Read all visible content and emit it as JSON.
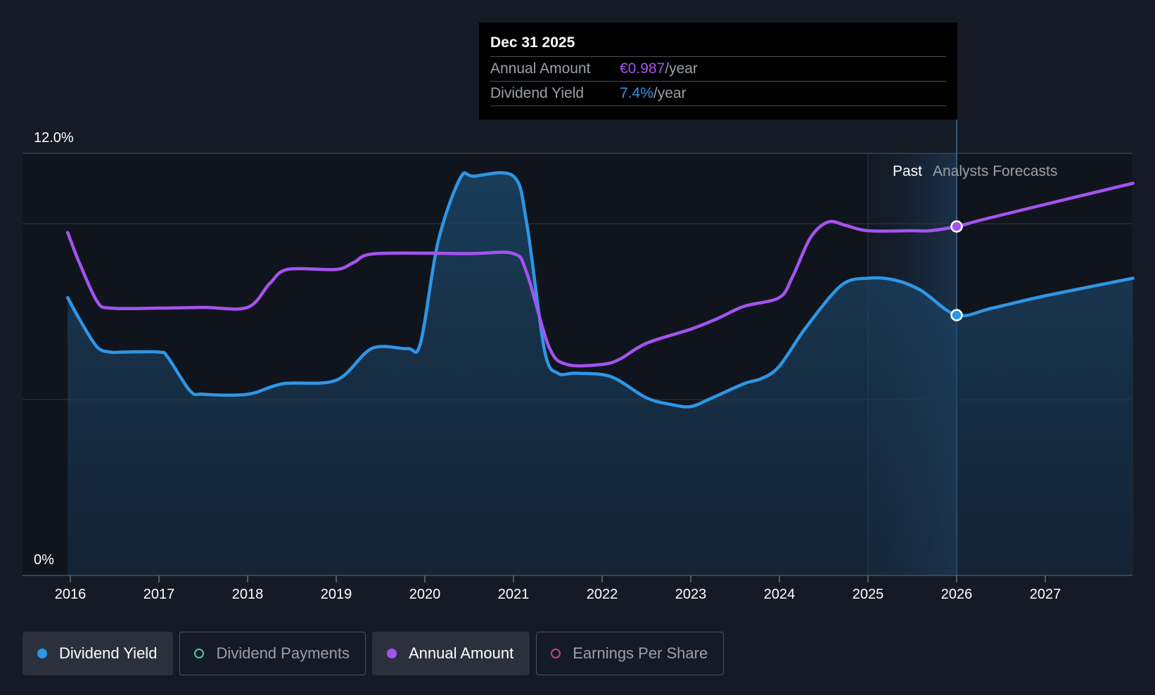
{
  "chart_data": {
    "type": "line",
    "y_axis": {
      "min": 0,
      "max": 12.0,
      "tick_labels": [
        "12.0%",
        "0%"
      ]
    },
    "x_ticks": [
      "2016",
      "2017",
      "2018",
      "2019",
      "2020",
      "2021",
      "2022",
      "2023",
      "2024",
      "2025",
      "2026",
      "2027"
    ],
    "x_range": [
      2015.97,
      2027.99
    ],
    "regions": {
      "past_label": "Past",
      "forecast_label": "Analysts Forecasts",
      "past_start": 2025.0,
      "forecast_start": 2026.0
    },
    "series": [
      {
        "name": "Dividend Yield",
        "color": "#2e96e6",
        "unit": "%",
        "points": [
          [
            2015.97,
            7.9
          ],
          [
            2016.1,
            7.3
          ],
          [
            2016.3,
            6.5
          ],
          [
            2016.45,
            6.35
          ],
          [
            2016.6,
            6.35
          ],
          [
            2017.0,
            6.35
          ],
          [
            2017.1,
            6.2
          ],
          [
            2017.35,
            5.25
          ],
          [
            2017.5,
            5.15
          ],
          [
            2018.0,
            5.15
          ],
          [
            2018.4,
            5.45
          ],
          [
            2019.0,
            5.55
          ],
          [
            2019.4,
            6.45
          ],
          [
            2019.8,
            6.45
          ],
          [
            2019.95,
            6.6
          ],
          [
            2020.15,
            9.5
          ],
          [
            2020.4,
            11.3
          ],
          [
            2020.55,
            11.35
          ],
          [
            2021.0,
            11.35
          ],
          [
            2021.15,
            10.0
          ],
          [
            2021.35,
            6.4
          ],
          [
            2021.5,
            5.75
          ],
          [
            2021.7,
            5.75
          ],
          [
            2022.1,
            5.65
          ],
          [
            2022.5,
            5.05
          ],
          [
            2022.8,
            4.85
          ],
          [
            2023.0,
            4.8
          ],
          [
            2023.2,
            5.0
          ],
          [
            2023.6,
            5.45
          ],
          [
            2023.8,
            5.6
          ],
          [
            2024.0,
            5.95
          ],
          [
            2024.3,
            7.05
          ],
          [
            2024.7,
            8.25
          ],
          [
            2025.0,
            8.45
          ],
          [
            2025.3,
            8.4
          ],
          [
            2025.6,
            8.1
          ],
          [
            2026.0,
            7.4
          ],
          [
            2026.4,
            7.6
          ],
          [
            2027.0,
            7.95
          ],
          [
            2027.99,
            8.45
          ]
        ]
      },
      {
        "name": "Annual Amount",
        "color": "#a553ee",
        "unit": "€",
        "points": [
          [
            2015.97,
            9.75
          ],
          [
            2016.1,
            8.9
          ],
          [
            2016.3,
            7.8
          ],
          [
            2016.45,
            7.6
          ],
          [
            2017.0,
            7.6
          ],
          [
            2017.5,
            7.62
          ],
          [
            2018.0,
            7.62
          ],
          [
            2018.25,
            8.3
          ],
          [
            2018.45,
            8.7
          ],
          [
            2019.0,
            8.7
          ],
          [
            2019.2,
            8.9
          ],
          [
            2019.45,
            9.15
          ],
          [
            2020.5,
            9.15
          ],
          [
            2021.0,
            9.15
          ],
          [
            2021.15,
            8.6
          ],
          [
            2021.4,
            6.5
          ],
          [
            2021.6,
            6.0
          ],
          [
            2022.0,
            6.0
          ],
          [
            2022.2,
            6.15
          ],
          [
            2022.5,
            6.6
          ],
          [
            2023.0,
            7.0
          ],
          [
            2023.3,
            7.3
          ],
          [
            2023.6,
            7.65
          ],
          [
            2024.0,
            7.9
          ],
          [
            2024.15,
            8.5
          ],
          [
            2024.35,
            9.6
          ],
          [
            2024.55,
            10.05
          ],
          [
            2024.75,
            9.95
          ],
          [
            2025.0,
            9.8
          ],
          [
            2025.5,
            9.8
          ],
          [
            2025.7,
            9.8
          ],
          [
            2026.0,
            9.92
          ],
          [
            2026.3,
            10.12
          ],
          [
            2027.0,
            10.55
          ],
          [
            2027.99,
            11.15
          ]
        ]
      }
    ],
    "highlight": {
      "x": 2026.0,
      "yield_value": 7.4,
      "amount_value": 9.92
    }
  },
  "tooltip": {
    "date": "Dec 31 2025",
    "rows": [
      {
        "label": "Annual Amount",
        "value": "€0.987",
        "unit": "/year",
        "color": "#a553ee"
      },
      {
        "label": "Dividend Yield",
        "value": "7.4%",
        "unit": "/year",
        "color": "#2e96e6"
      }
    ]
  },
  "legend": [
    {
      "label": "Dividend Yield",
      "color": "#2e96e6",
      "active": true,
      "filled": true
    },
    {
      "label": "Dividend Payments",
      "color": "#4fc4b8",
      "active": false,
      "filled": false
    },
    {
      "label": "Annual Amount",
      "color": "#a553ee",
      "active": true,
      "filled": true
    },
    {
      "label": "Earnings Per Share",
      "color": "#c2457a",
      "active": false,
      "filled": false
    }
  ]
}
